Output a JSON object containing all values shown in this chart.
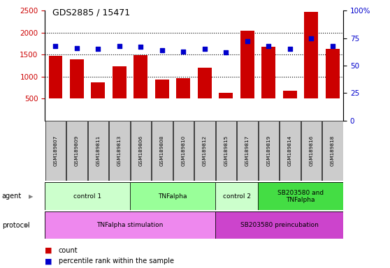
{
  "title": "GDS2885 / 15471",
  "samples": [
    "GSM189807",
    "GSM189809",
    "GSM189811",
    "GSM189813",
    "GSM189806",
    "GSM189808",
    "GSM189810",
    "GSM189812",
    "GSM189815",
    "GSM189817",
    "GSM189819",
    "GSM189814",
    "GSM189816",
    "GSM189818"
  ],
  "counts": [
    1470,
    1400,
    870,
    1230,
    1490,
    940,
    960,
    1200,
    630,
    2050,
    1680,
    680,
    2480,
    1630
  ],
  "percentiles": [
    68,
    66,
    65,
    68,
    67,
    64,
    63,
    65,
    62,
    72,
    68,
    65,
    75,
    68
  ],
  "ylim_left": [
    0,
    2500
  ],
  "ylim_right": [
    0,
    100
  ],
  "yticks_left": [
    500,
    1000,
    1500,
    2000,
    2500
  ],
  "yticks_right": [
    0,
    25,
    50,
    75,
    100
  ],
  "bar_color": "#cc0000",
  "dot_color": "#0000cc",
  "agent_groups": [
    {
      "label": "control 1",
      "start": 0,
      "end": 4,
      "color": "#ccffcc"
    },
    {
      "label": "TNFalpha",
      "start": 4,
      "end": 8,
      "color": "#99ff99"
    },
    {
      "label": "control 2",
      "start": 8,
      "end": 10,
      "color": "#ccffcc"
    },
    {
      "label": "SB203580 and\nTNFalpha",
      "start": 10,
      "end": 14,
      "color": "#44dd44"
    }
  ],
  "protocol_groups": [
    {
      "label": "TNFalpha stimulation",
      "start": 0,
      "end": 8,
      "color": "#ee88ee"
    },
    {
      "label": "SB203580 preincubation",
      "start": 8,
      "end": 14,
      "color": "#cc44cc"
    }
  ],
  "bar_bottom": 500,
  "grid_lines": [
    1000,
    1500,
    2000
  ],
  "tick_label_color_left": "#cc0000",
  "tick_label_color_right": "#0000cc",
  "background_color": "#ffffff",
  "sample_box_color": "#cccccc"
}
